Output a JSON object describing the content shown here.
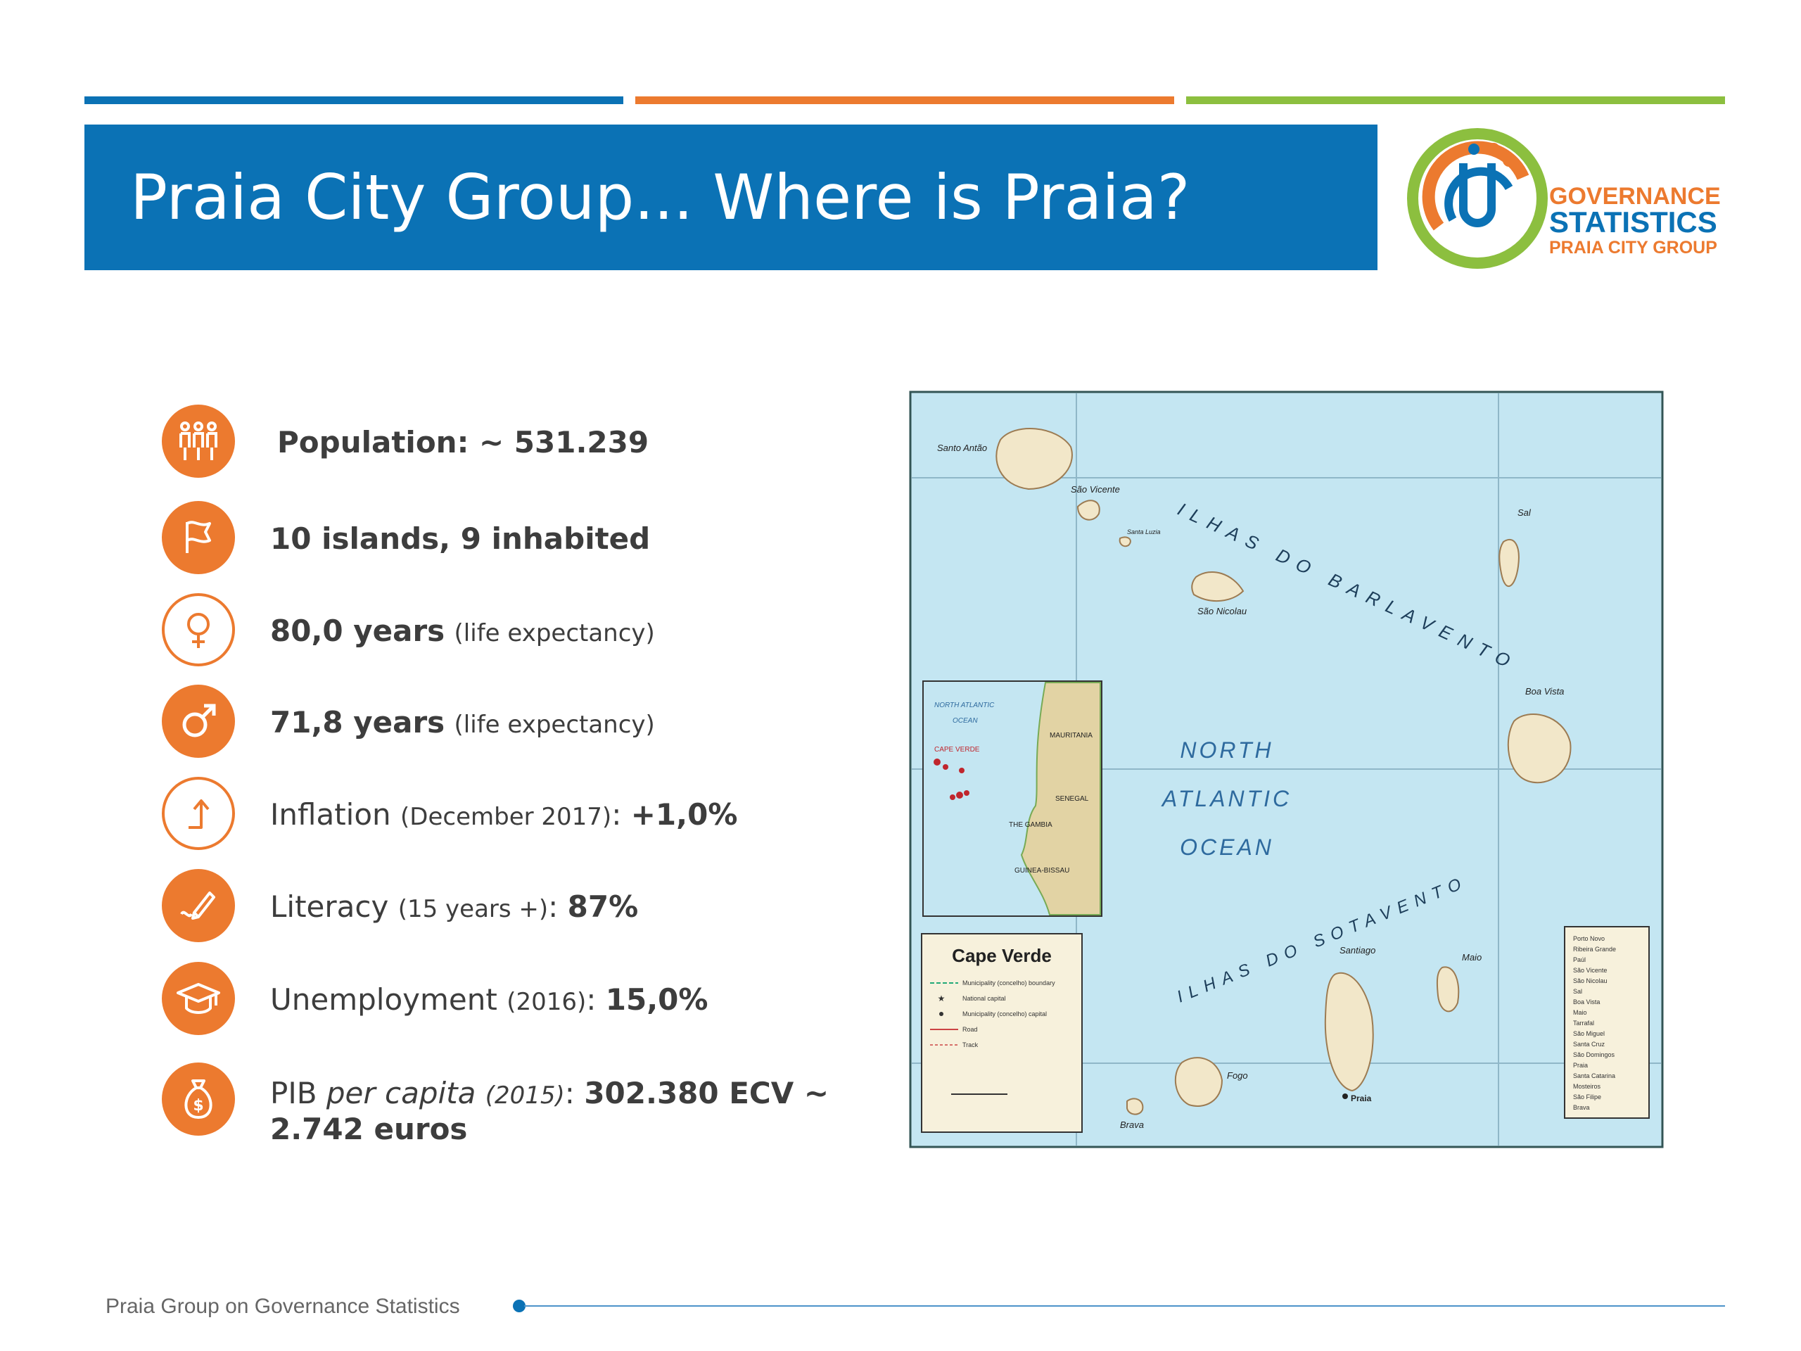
{
  "header": {
    "title": "Praia City Group... Where is Praia?",
    "colors": {
      "blue": "#0B72B5",
      "orange": "#EC7A2F",
      "green": "#8CBF3F"
    }
  },
  "logo": {
    "line1": "GOVERNANCE",
    "line2": "STATISTICS",
    "line3": "PRAIA CITY GROUP"
  },
  "stats": [
    {
      "icon": "people-icon",
      "bold": "Population: ~ 531.239"
    },
    {
      "icon": "flag-icon",
      "bold": "10 islands, 9 inhabited"
    },
    {
      "icon": "female-icon",
      "bold": "80,0 years",
      "small": "(life expectancy)"
    },
    {
      "icon": "male-icon",
      "bold": "71,8 years",
      "small": "(life expectancy)"
    },
    {
      "icon": "inflation-arrow-icon",
      "label": "Inflation",
      "small": "(December 2017)",
      "sep": ":",
      "value": "+1,0%"
    },
    {
      "icon": "pen-icon",
      "label": "Literacy",
      "small": "(15 years +)",
      "sep": ":",
      "value": "87%"
    },
    {
      "icon": "graduation-cap-icon",
      "label": "Unemployment",
      "small": "(2016)",
      "sep": ":",
      "value": "15,0%"
    },
    {
      "icon": "money-bag-icon",
      "label": "PIB",
      "italic": "per capita",
      "small_italic": "(2015)",
      "sep": ":",
      "value": "302.380 ECV ~",
      "value2": "2.742 euros"
    }
  ],
  "map": {
    "islands": [
      "Santo Antão",
      "São Vicente",
      "Santa Luzia",
      "São Nicolau",
      "Sal",
      "Boa Vista",
      "Maio",
      "Santiago",
      "Fogo",
      "Brava"
    ],
    "regions": [
      "ILHAS DO BARLAVENTO",
      "ILHAS DO SOTAVENTO"
    ],
    "ocean_lines": [
      "NORTH",
      "ATLANTIC",
      "OCEAN"
    ],
    "inset": {
      "ocean": [
        "NORTH ATLANTIC",
        "OCEAN"
      ],
      "countries": [
        "MAURITANIA",
        "SENEGAL",
        "THE GAMBIA",
        "GUINEA-BISSAU"
      ],
      "highlight": "CAPE VERDE"
    },
    "legend": {
      "title": "Cape Verde",
      "items": [
        "Municipality (concelho) boundary",
        "National capital",
        "Municipality (concelho) capital",
        "Road",
        "Track"
      ]
    },
    "capital": "Praia",
    "municipalities": [
      "Porto Novo",
      "Ribeira Grande",
      "Paúl",
      "São Vicente",
      "São Nicolau",
      "Sal",
      "Boa Vista",
      "Maio",
      "Tarrafal",
      "São Miguel",
      "Santa Cruz",
      "São Domingos",
      "Praia",
      "Santa Catarina",
      "Mosteiros",
      "São Filipe",
      "Brava"
    ]
  },
  "footer": {
    "text": "Praia Group on Governance Statistics"
  }
}
